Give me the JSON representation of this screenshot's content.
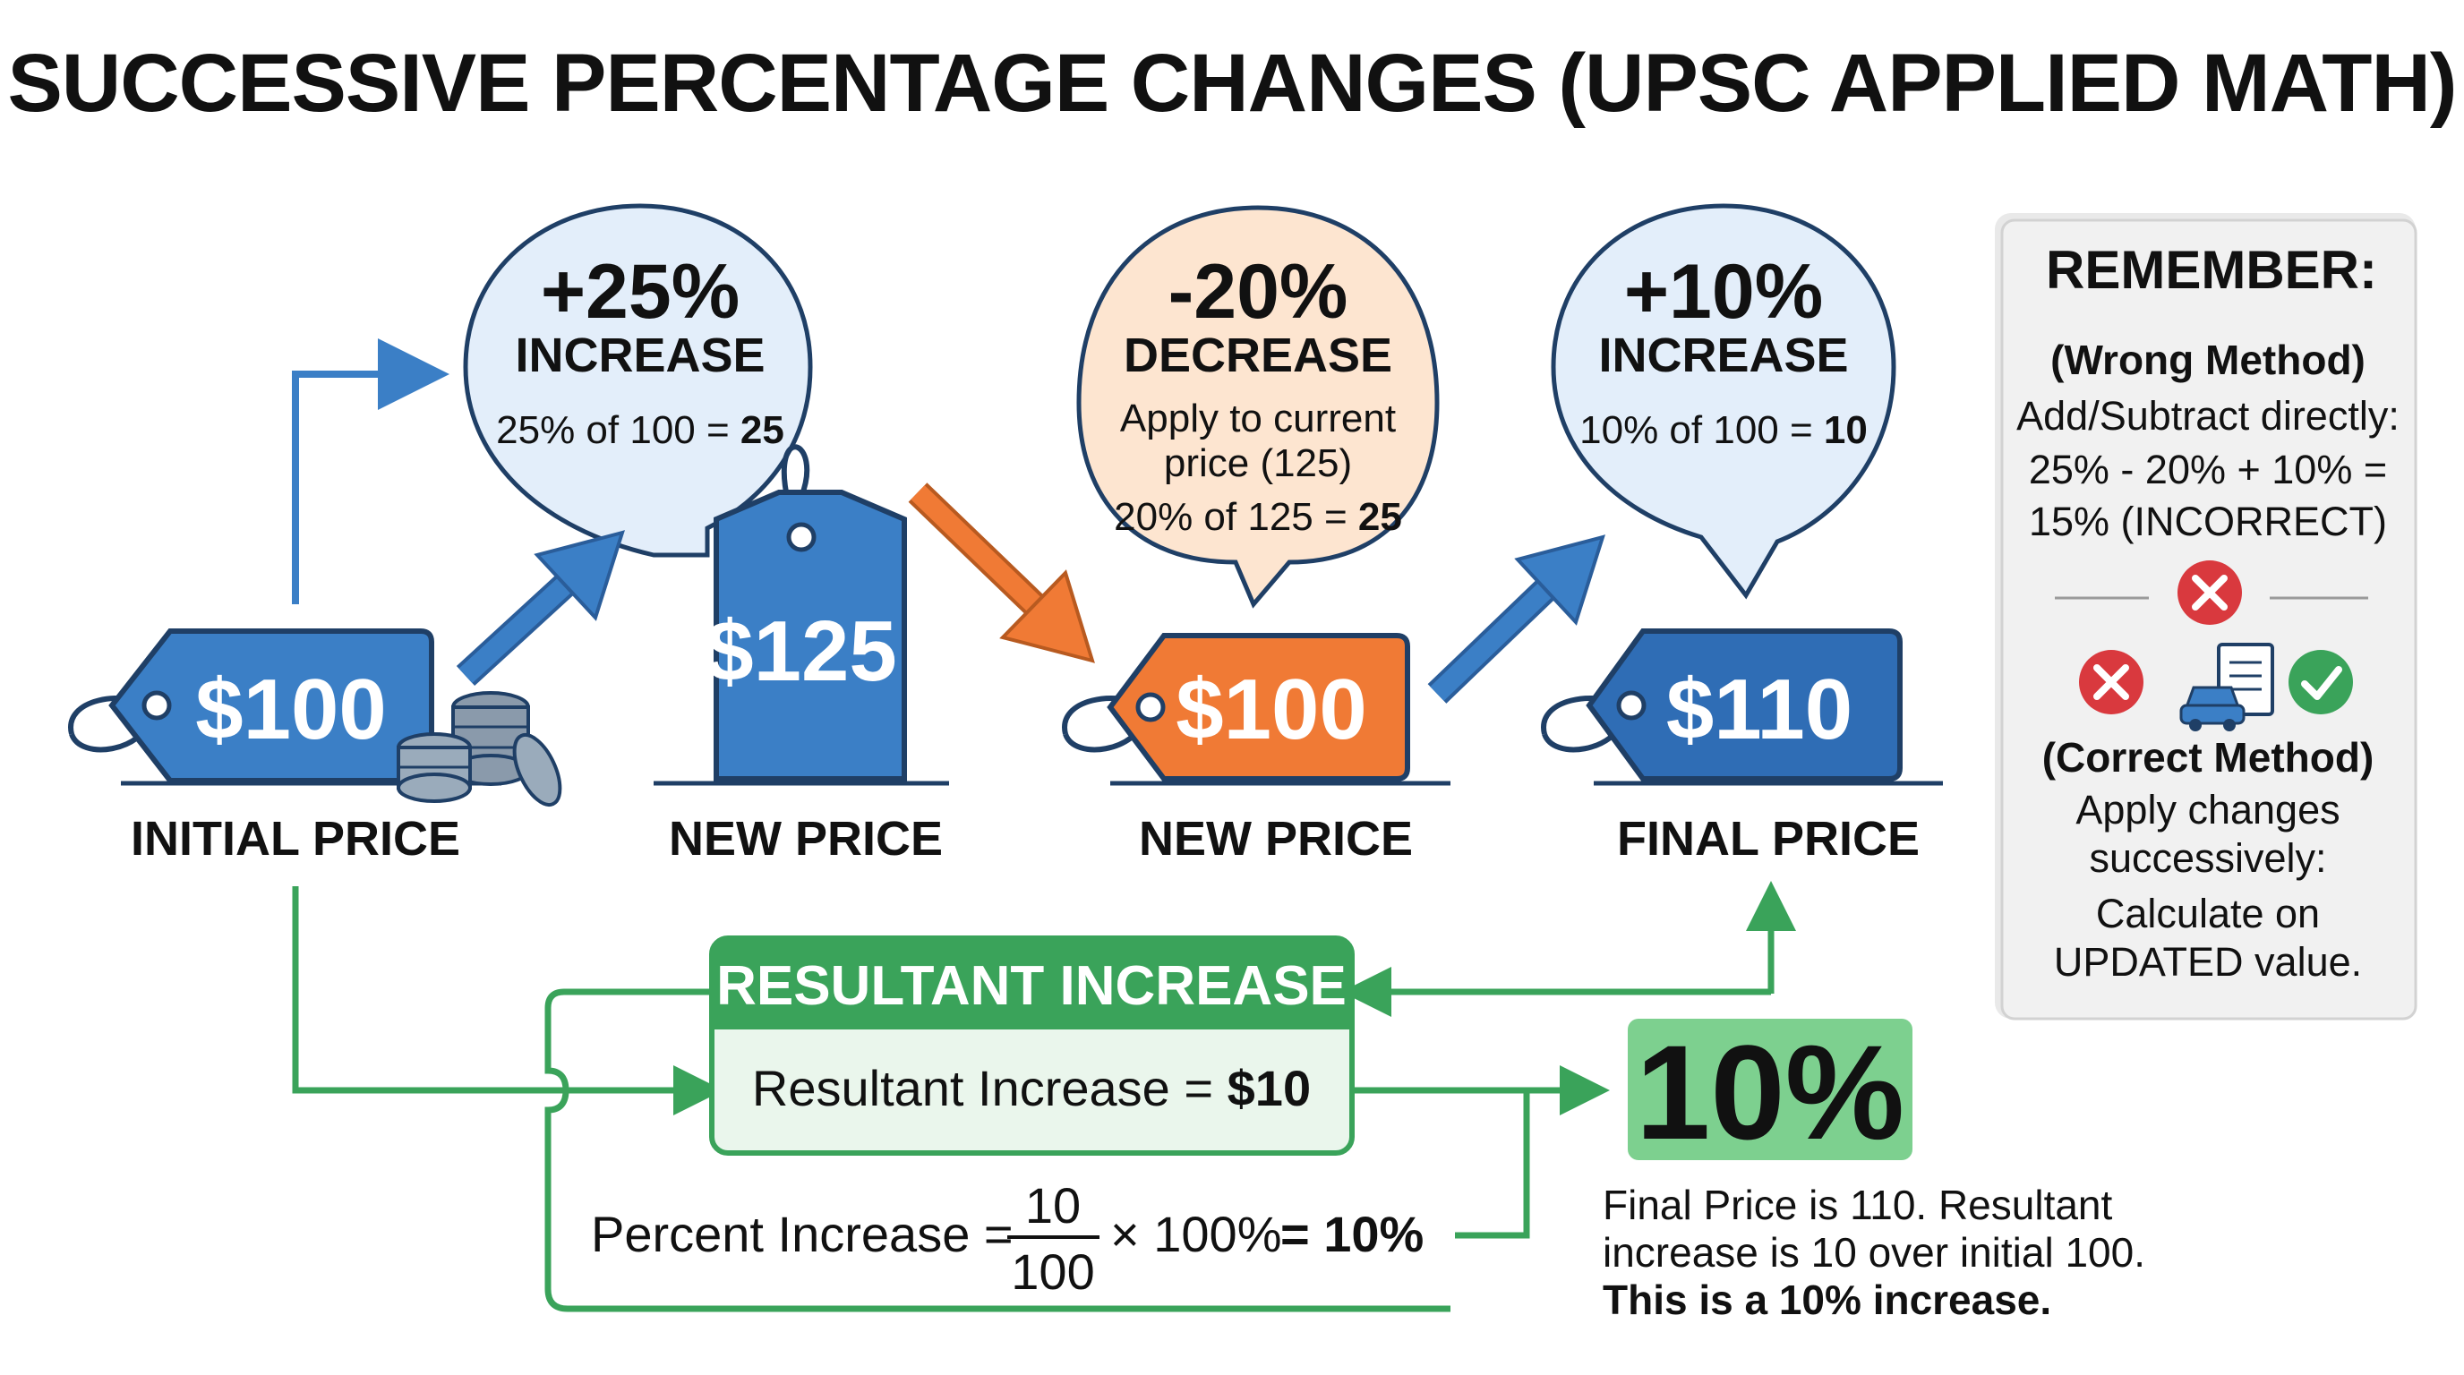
{
  "title": "SUCCESSIVE PERCENTAGE CHANGES (UPSC APPLIED MATH)",
  "colors": {
    "blue": "#3b7fc6",
    "blue_dark": "#1f4f8a",
    "orange": "#f07a35",
    "green": "#3aa35a",
    "green_light": "#e8f5ea",
    "bubble_blue": "#e3eefa",
    "bubble_orange": "#fde5d0",
    "red": "#d9393e",
    "panel_gray": "#f0f0f0"
  },
  "stages": [
    {
      "tag": "$100",
      "label": "INITIAL PRICE",
      "tag_color": "blue"
    },
    {
      "tag": "$125",
      "label": "NEW PRICE",
      "tag_color": "blue_dark"
    },
    {
      "tag": "$100",
      "label": "NEW PRICE",
      "tag_color": "orange"
    },
    {
      "tag": "$110",
      "label": "FINAL PRICE",
      "tag_color": "blue"
    }
  ],
  "bubbles": [
    {
      "big": "+25%",
      "mid": "INCREASE",
      "calc_prefix": "25% of 100 = ",
      "calc_bold": "25"
    },
    {
      "big": "-20%",
      "mid": "DECREASE",
      "note_line1": "Apply to current",
      "note_line2": "price (125)",
      "calc_prefix": "20% of 125 = ",
      "calc_bold": "25"
    },
    {
      "big": "+10%",
      "mid": "INCREASE",
      "calc_prefix": "10% of 100 = ",
      "calc_bold": "10"
    }
  ],
  "remember": {
    "heading": "REMEMBER:",
    "wrong_label": "(Wrong Method)",
    "wrong_line1": "Add/Subtract directly:",
    "wrong_line2": "25% - 20% + 10% =",
    "wrong_line3": "15% (INCORRECT)",
    "correct_label": "(Correct Method)",
    "correct_line1": "Apply changes",
    "correct_line2": "successively:",
    "correct_line3": "Calculate on",
    "correct_line4": "UPDATED value.",
    "icons": [
      "x-icon",
      "x-icon",
      "document-car-icon",
      "check-icon"
    ]
  },
  "resultant": {
    "header": "RESULTANT INCREASE",
    "body_prefix": "Resultant Increase = ",
    "body_bold": "$10"
  },
  "formula": {
    "prefix": "Percent Increase = ",
    "numerator": "10",
    "denominator": "100",
    "times": "× 100%",
    "result": "= 10%"
  },
  "result_badge": "10%",
  "final_note": {
    "line1": "Final Price is 110. Resultant",
    "line2": "increase is 10 over initial 100.",
    "line3": "This is a 10% increase."
  }
}
